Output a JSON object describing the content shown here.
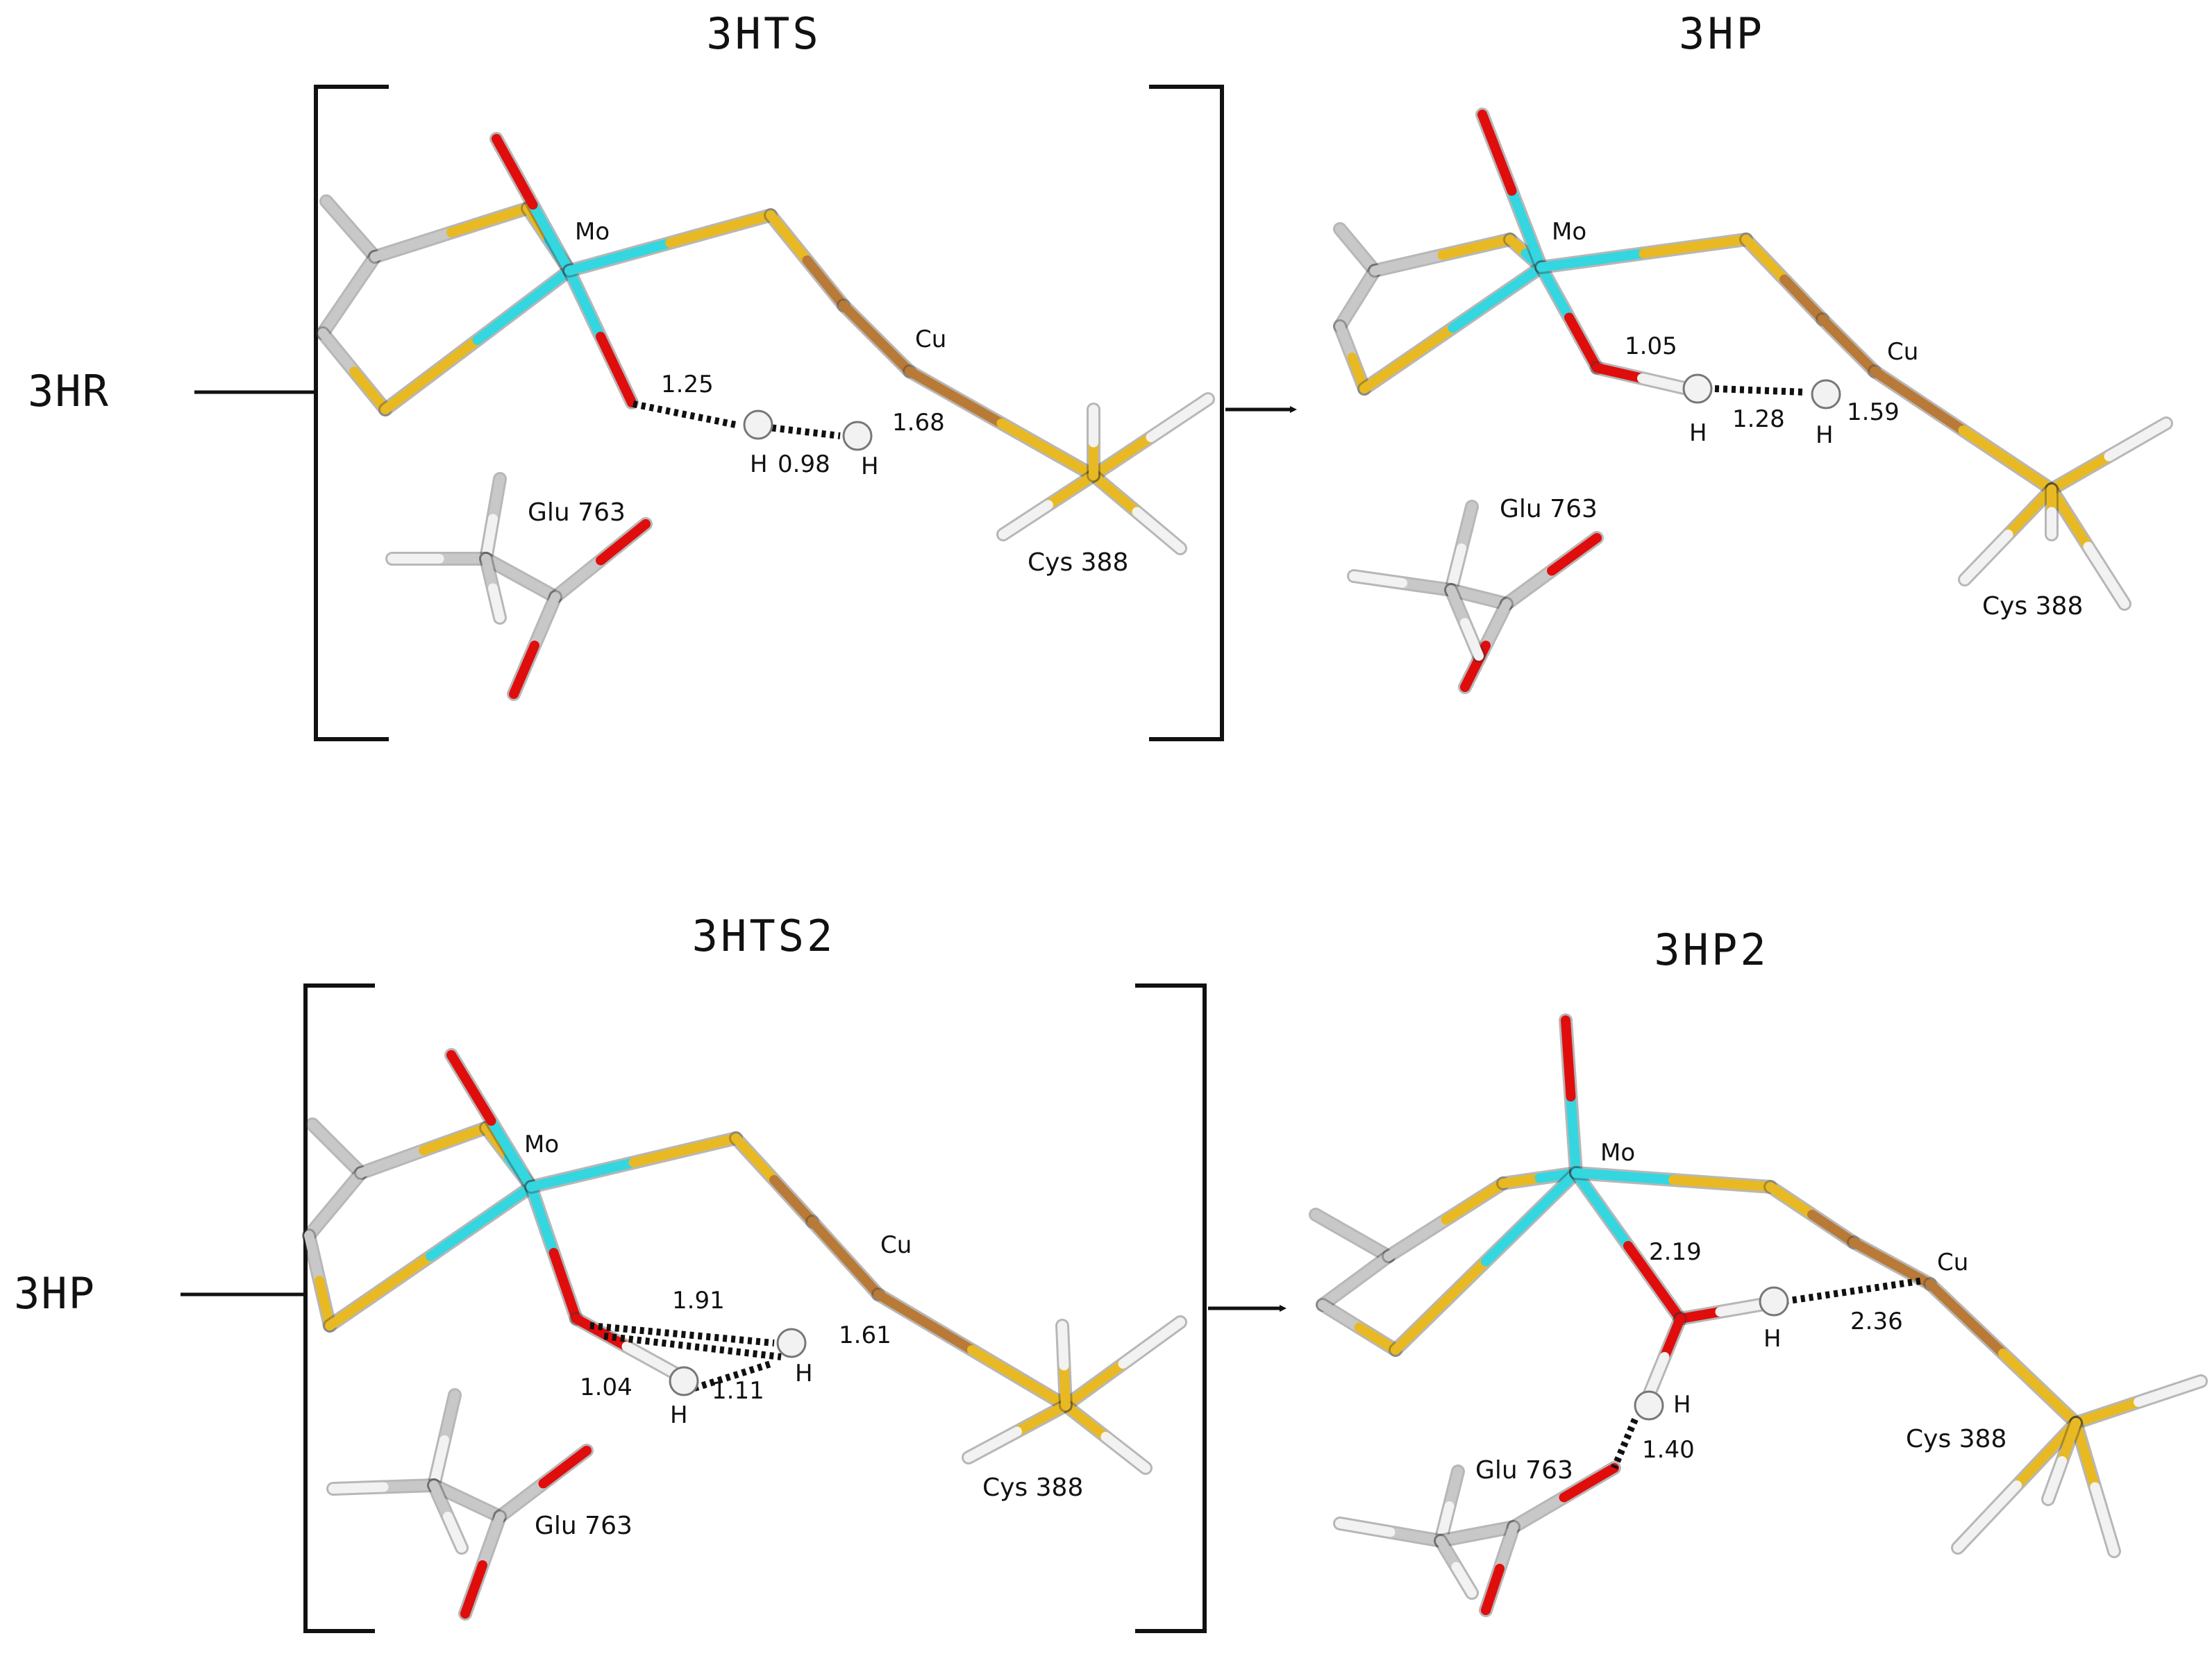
{
  "colors": {
    "mo": "#34d6e0",
    "oxygen": "#e00d0d",
    "sulfur": "#e8b923",
    "copper": "#b97a37",
    "carbon": "#c8c8c8",
    "hydrogen": "#f2f2f2",
    "hbond": "#111111"
  },
  "labels": {
    "reactant_top": "3HR",
    "reactant_bottom": "3HP"
  },
  "panels": [
    {
      "title": "3HTS",
      "mo": "Mo",
      "cu": "Cu",
      "h1": "H",
      "h2": "H",
      "glu": "Glu 763",
      "cys": "Cys 388",
      "d_o_h": "1.25",
      "d_h_h": "0.98",
      "d_h_cu": "1.68"
    },
    {
      "title": "3HP",
      "mo": "Mo",
      "cu": "Cu",
      "h1": "H",
      "h2": "H",
      "glu": "Glu 763",
      "cys": "Cys 388",
      "d_o_h": "1.05",
      "d_h_h": "1.28",
      "d_h_cu": "1.59"
    },
    {
      "title": "3HTS2",
      "mo": "Mo",
      "cu": "Cu",
      "h1": "H",
      "h2": "H",
      "glu": "Glu 763",
      "cys": "Cys 388",
      "d_o_h2": "1.91",
      "d_h_cu": "1.61",
      "d_o_h1": "1.04",
      "d_h_h": "1.11"
    },
    {
      "title": "3HP2",
      "mo": "Mo",
      "cu": "Cu",
      "h1": "H",
      "h2": "H",
      "glu": "Glu 763",
      "cys": "Cys 388",
      "d_mo_o": "2.19",
      "d_h_cu": "2.36",
      "d_h_glu": "1.40"
    }
  ]
}
